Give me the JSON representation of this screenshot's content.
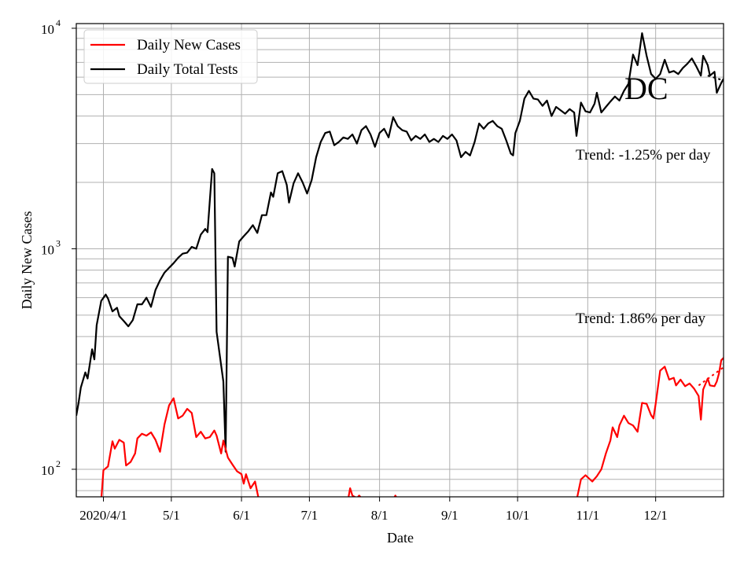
{
  "chart_data": {
    "type": "line",
    "title": "DC",
    "xlabel": "Date",
    "ylabel": "Daily New Cases",
    "yscale": "log",
    "ylim": [
      75,
      10500
    ],
    "xlim": [
      "2020-03-20",
      "2020-12-31"
    ],
    "grid": true,
    "legend_position": "top-left",
    "x_ticks": [
      {
        "date": "2020-04-01",
        "label": "2020/4/1"
      },
      {
        "date": "2020-05-01",
        "label": "5/1"
      },
      {
        "date": "2020-06-01",
        "label": "6/1"
      },
      {
        "date": "2020-07-01",
        "label": "7/1"
      },
      {
        "date": "2020-08-01",
        "label": "8/1"
      },
      {
        "date": "2020-09-01",
        "label": "9/1"
      },
      {
        "date": "2020-10-01",
        "label": "10/1"
      },
      {
        "date": "2020-11-01",
        "label": "11/1"
      },
      {
        "date": "2020-12-01",
        "label": "12/1"
      }
    ],
    "y_ticks": [
      {
        "value": 100,
        "base": "10",
        "exp": "2"
      },
      {
        "value": 1000,
        "base": "10",
        "exp": "3"
      },
      {
        "value": 10000,
        "base": "10",
        "exp": "4"
      }
    ],
    "annotations": {
      "tests_trend": "Trend: -1.25% per day",
      "cases_trend": "Trend: 1.86% per day"
    },
    "series": [
      {
        "name": "Daily New Cases",
        "color": "#ff0000",
        "points": [
          [
            "2020-03-31",
            72
          ],
          [
            "2020-04-01",
            99
          ],
          [
            "2020-04-03",
            103
          ],
          [
            "2020-04-05",
            134
          ],
          [
            "2020-04-06",
            124
          ],
          [
            "2020-04-08",
            136
          ],
          [
            "2020-04-10",
            132
          ],
          [
            "2020-04-11",
            104
          ],
          [
            "2020-04-13",
            108
          ],
          [
            "2020-04-15",
            118
          ],
          [
            "2020-04-16",
            138
          ],
          [
            "2020-04-18",
            145
          ],
          [
            "2020-04-20",
            142
          ],
          [
            "2020-04-22",
            147
          ],
          [
            "2020-04-24",
            136
          ],
          [
            "2020-04-26",
            120
          ],
          [
            "2020-04-28",
            160
          ],
          [
            "2020-04-30",
            195
          ],
          [
            "2020-05-02",
            210
          ],
          [
            "2020-05-04",
            170
          ],
          [
            "2020-05-06",
            175
          ],
          [
            "2020-05-08",
            188
          ],
          [
            "2020-05-10",
            180
          ],
          [
            "2020-05-12",
            140
          ],
          [
            "2020-05-14",
            148
          ],
          [
            "2020-05-16",
            138
          ],
          [
            "2020-05-18",
            140
          ],
          [
            "2020-05-20",
            150
          ],
          [
            "2020-05-21",
            142
          ],
          [
            "2020-05-23",
            118
          ],
          [
            "2020-05-24",
            135
          ],
          [
            "2020-05-26",
            113
          ],
          [
            "2020-05-28",
            105
          ],
          [
            "2020-05-30",
            98
          ],
          [
            "2020-06-01",
            95
          ],
          [
            "2020-06-02",
            86
          ],
          [
            "2020-06-03",
            95
          ],
          [
            "2020-06-05",
            82
          ],
          [
            "2020-06-07",
            88
          ],
          [
            "2020-06-09",
            70
          ]
        ],
        "points_b": [
          [
            "2020-07-18",
            72
          ],
          [
            "2020-07-19",
            82
          ],
          [
            "2020-07-20",
            76
          ],
          [
            "2020-07-22",
            74
          ],
          [
            "2020-07-23",
            76
          ],
          [
            "2020-07-25",
            72
          ]
        ],
        "points_c": [
          [
            "2020-08-07",
            73
          ],
          [
            "2020-08-08",
            76
          ],
          [
            "2020-08-09",
            73
          ]
        ],
        "points_d": [
          [
            "2020-10-27",
            72
          ],
          [
            "2020-10-29",
            90
          ],
          [
            "2020-10-31",
            94
          ],
          [
            "2020-11-03",
            88
          ],
          [
            "2020-11-05",
            93
          ],
          [
            "2020-11-07",
            100
          ],
          [
            "2020-11-09",
            118
          ],
          [
            "2020-11-11",
            135
          ],
          [
            "2020-11-12",
            155
          ],
          [
            "2020-11-14",
            140
          ],
          [
            "2020-11-15",
            158
          ],
          [
            "2020-11-17",
            175
          ],
          [
            "2020-11-19",
            162
          ],
          [
            "2020-11-21",
            158
          ],
          [
            "2020-11-23",
            148
          ],
          [
            "2020-11-25",
            200
          ],
          [
            "2020-11-27",
            198
          ],
          [
            "2020-11-29",
            176
          ],
          [
            "2020-11-30",
            170
          ],
          [
            "2020-12-01",
            198
          ],
          [
            "2020-12-03",
            280
          ],
          [
            "2020-12-05",
            292
          ],
          [
            "2020-12-07",
            255
          ],
          [
            "2020-12-09",
            260
          ],
          [
            "2020-12-10",
            240
          ],
          [
            "2020-12-12",
            255
          ],
          [
            "2020-12-14",
            238
          ],
          [
            "2020-12-16",
            245
          ],
          [
            "2020-12-18",
            232
          ],
          [
            "2020-12-20",
            215
          ],
          [
            "2020-12-21",
            168
          ],
          [
            "2020-12-22",
            230
          ],
          [
            "2020-12-24",
            258
          ],
          [
            "2020-12-25",
            240
          ],
          [
            "2020-12-27",
            238
          ],
          [
            "2020-12-28",
            250
          ],
          [
            "2020-12-29",
            272
          ],
          [
            "2020-12-30",
            312
          ],
          [
            "2020-12-31",
            320
          ]
        ]
      },
      {
        "name": "Daily Total Tests",
        "color": "#000000",
        "points": [
          [
            "2020-03-20",
            175
          ],
          [
            "2020-03-21",
            200
          ],
          [
            "2020-03-22",
            235
          ],
          [
            "2020-03-24",
            275
          ],
          [
            "2020-03-25",
            258
          ],
          [
            "2020-03-27",
            350
          ],
          [
            "2020-03-28",
            315
          ],
          [
            "2020-03-29",
            450
          ],
          [
            "2020-03-31",
            580
          ],
          [
            "2020-04-02",
            620
          ],
          [
            "2020-04-03",
            595
          ],
          [
            "2020-04-05",
            520
          ],
          [
            "2020-04-07",
            540
          ],
          [
            "2020-04-08",
            495
          ],
          [
            "2020-04-10",
            470
          ],
          [
            "2020-04-12",
            445
          ],
          [
            "2020-04-14",
            475
          ],
          [
            "2020-04-16",
            560
          ],
          [
            "2020-04-18",
            560
          ],
          [
            "2020-04-20",
            600
          ],
          [
            "2020-04-22",
            545
          ],
          [
            "2020-04-24",
            650
          ],
          [
            "2020-04-26",
            720
          ],
          [
            "2020-04-28",
            780
          ],
          [
            "2020-04-30",
            820
          ],
          [
            "2020-05-02",
            860
          ],
          [
            "2020-05-04",
            910
          ],
          [
            "2020-05-06",
            950
          ],
          [
            "2020-05-08",
            960
          ],
          [
            "2020-05-10",
            1020
          ],
          [
            "2020-05-12",
            1000
          ],
          [
            "2020-05-14",
            1160
          ],
          [
            "2020-05-16",
            1230
          ],
          [
            "2020-05-17",
            1190
          ],
          [
            "2020-05-19",
            2300
          ],
          [
            "2020-05-20",
            2200
          ],
          [
            "2020-05-21",
            420
          ],
          [
            "2020-05-24",
            250
          ],
          [
            "2020-05-25",
            120
          ],
          [
            "2020-05-26",
            920
          ],
          [
            "2020-05-28",
            910
          ],
          [
            "2020-05-29",
            830
          ],
          [
            "2020-05-31",
            1080
          ],
          [
            "2020-06-02",
            1140
          ],
          [
            "2020-06-04",
            1200
          ],
          [
            "2020-06-06",
            1280
          ],
          [
            "2020-06-08",
            1180
          ],
          [
            "2020-06-10",
            1420
          ],
          [
            "2020-06-12",
            1420
          ],
          [
            "2020-06-14",
            1800
          ],
          [
            "2020-06-15",
            1720
          ],
          [
            "2020-06-17",
            2200
          ],
          [
            "2020-06-19",
            2250
          ],
          [
            "2020-06-21",
            1950
          ],
          [
            "2020-06-22",
            1620
          ],
          [
            "2020-06-24",
            1980
          ],
          [
            "2020-06-26",
            2200
          ],
          [
            "2020-06-28",
            2000
          ],
          [
            "2020-06-30",
            1780
          ],
          [
            "2020-07-02",
            2050
          ],
          [
            "2020-07-04",
            2600
          ],
          [
            "2020-07-06",
            3050
          ],
          [
            "2020-07-08",
            3350
          ],
          [
            "2020-07-10",
            3400
          ],
          [
            "2020-07-12",
            2950
          ],
          [
            "2020-07-14",
            3050
          ],
          [
            "2020-07-16",
            3200
          ],
          [
            "2020-07-18",
            3150
          ],
          [
            "2020-07-20",
            3300
          ],
          [
            "2020-07-22",
            3000
          ],
          [
            "2020-07-24",
            3450
          ],
          [
            "2020-07-26",
            3600
          ],
          [
            "2020-07-28",
            3300
          ],
          [
            "2020-07-30",
            2900
          ],
          [
            "2020-08-01",
            3350
          ],
          [
            "2020-08-03",
            3500
          ],
          [
            "2020-08-05",
            3200
          ],
          [
            "2020-08-07",
            3950
          ],
          [
            "2020-08-09",
            3600
          ],
          [
            "2020-08-11",
            3450
          ],
          [
            "2020-08-13",
            3400
          ],
          [
            "2020-08-15",
            3100
          ],
          [
            "2020-08-17",
            3250
          ],
          [
            "2020-08-19",
            3150
          ],
          [
            "2020-08-21",
            3300
          ],
          [
            "2020-08-23",
            3050
          ],
          [
            "2020-08-25",
            3150
          ],
          [
            "2020-08-27",
            3050
          ],
          [
            "2020-08-29",
            3250
          ],
          [
            "2020-08-31",
            3150
          ],
          [
            "2020-09-02",
            3300
          ],
          [
            "2020-09-04",
            3100
          ],
          [
            "2020-09-06",
            2600
          ],
          [
            "2020-09-08",
            2750
          ],
          [
            "2020-09-10",
            2650
          ],
          [
            "2020-09-12",
            3050
          ],
          [
            "2020-09-14",
            3700
          ],
          [
            "2020-09-16",
            3500
          ],
          [
            "2020-09-18",
            3700
          ],
          [
            "2020-09-20",
            3800
          ],
          [
            "2020-09-22",
            3600
          ],
          [
            "2020-09-24",
            3500
          ],
          [
            "2020-09-26",
            3100
          ],
          [
            "2020-09-28",
            2700
          ],
          [
            "2020-09-29",
            2650
          ],
          [
            "2020-09-30",
            3350
          ],
          [
            "2020-10-02",
            3800
          ],
          [
            "2020-10-04",
            4800
          ],
          [
            "2020-10-06",
            5200
          ],
          [
            "2020-10-08",
            4800
          ],
          [
            "2020-10-10",
            4750
          ],
          [
            "2020-10-12",
            4450
          ],
          [
            "2020-10-14",
            4700
          ],
          [
            "2020-10-16",
            4000
          ],
          [
            "2020-10-18",
            4400
          ],
          [
            "2020-10-20",
            4250
          ],
          [
            "2020-10-22",
            4100
          ],
          [
            "2020-10-24",
            4300
          ],
          [
            "2020-10-26",
            4150
          ],
          [
            "2020-10-27",
            3250
          ],
          [
            "2020-10-29",
            4600
          ],
          [
            "2020-10-31",
            4200
          ],
          [
            "2020-11-02",
            4150
          ],
          [
            "2020-11-04",
            4550
          ],
          [
            "2020-11-05",
            5100
          ],
          [
            "2020-11-07",
            4150
          ],
          [
            "2020-11-09",
            4400
          ],
          [
            "2020-11-11",
            4650
          ],
          [
            "2020-11-13",
            4900
          ],
          [
            "2020-11-15",
            4700
          ],
          [
            "2020-11-17",
            5200
          ],
          [
            "2020-11-19",
            5600
          ],
          [
            "2020-11-21",
            7600
          ],
          [
            "2020-11-23",
            6800
          ],
          [
            "2020-11-25",
            9500
          ],
          [
            "2020-11-27",
            7500
          ],
          [
            "2020-11-29",
            6200
          ],
          [
            "2020-12-01",
            5900
          ],
          [
            "2020-12-03",
            6200
          ],
          [
            "2020-12-05",
            7200
          ],
          [
            "2020-12-07",
            6300
          ],
          [
            "2020-12-09",
            6400
          ],
          [
            "2020-12-11",
            6200
          ],
          [
            "2020-12-13",
            6600
          ],
          [
            "2020-12-15",
            6900
          ],
          [
            "2020-12-17",
            7300
          ],
          [
            "2020-12-19",
            6700
          ],
          [
            "2020-12-21",
            6100
          ],
          [
            "2020-12-22",
            7500
          ],
          [
            "2020-12-24",
            6800
          ],
          [
            "2020-12-25",
            6100
          ],
          [
            "2020-12-27",
            6350
          ],
          [
            "2020-12-28",
            5100
          ],
          [
            "2020-12-30",
            5650
          ],
          [
            "2020-12-31",
            5900
          ]
        ]
      }
    ]
  }
}
